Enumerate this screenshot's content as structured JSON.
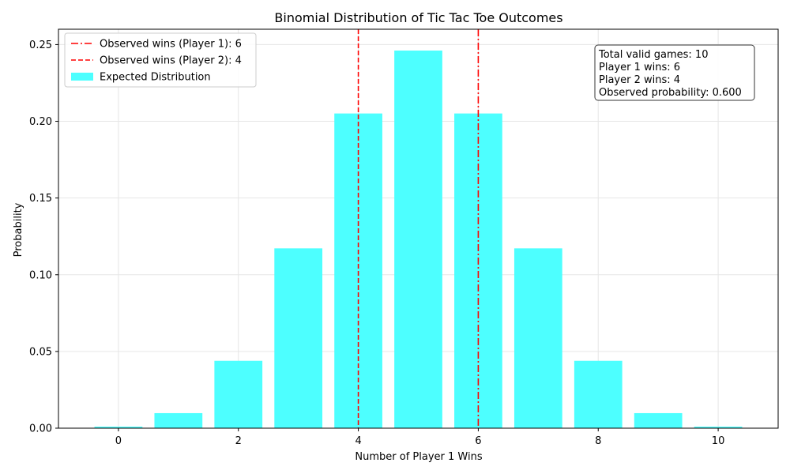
{
  "chart_data": {
    "type": "bar",
    "title": "Binomial Distribution of Tic Tac Toe Outcomes",
    "xlabel": "Number of Player 1 Wins",
    "ylabel": "Probability",
    "xlim": [
      -1,
      11
    ],
    "ylim": [
      0,
      0.26
    ],
    "x_ticks": [
      0,
      2,
      4,
      6,
      8,
      10
    ],
    "y_ticks": [
      0.0,
      0.05,
      0.1,
      0.15,
      0.2,
      0.25
    ],
    "x": [
      0,
      1,
      2,
      3,
      4,
      5,
      6,
      7,
      8,
      9,
      10
    ],
    "series": [
      {
        "name": "Expected Distribution",
        "color": "#4dffff",
        "values": [
          0.001,
          0.0098,
          0.0439,
          0.1172,
          0.2051,
          0.2461,
          0.2051,
          0.1172,
          0.0439,
          0.0098,
          0.001
        ]
      }
    ],
    "reference_lines": [
      {
        "name": "Observed wins (Player 1): 6",
        "x": 6,
        "style": "dashdot",
        "color": "#ff0000"
      },
      {
        "name": "Observed wins (Player 2): 4",
        "x": 4,
        "style": "dashed",
        "color": "#ff0000"
      }
    ],
    "grid": true,
    "legend_position": "top-left",
    "stats_box": {
      "position": "top-right",
      "lines": [
        "Total valid games: 10",
        "Player 1 wins: 6",
        "Player 2 wins: 4",
        "Observed probability: 0.600"
      ]
    }
  }
}
